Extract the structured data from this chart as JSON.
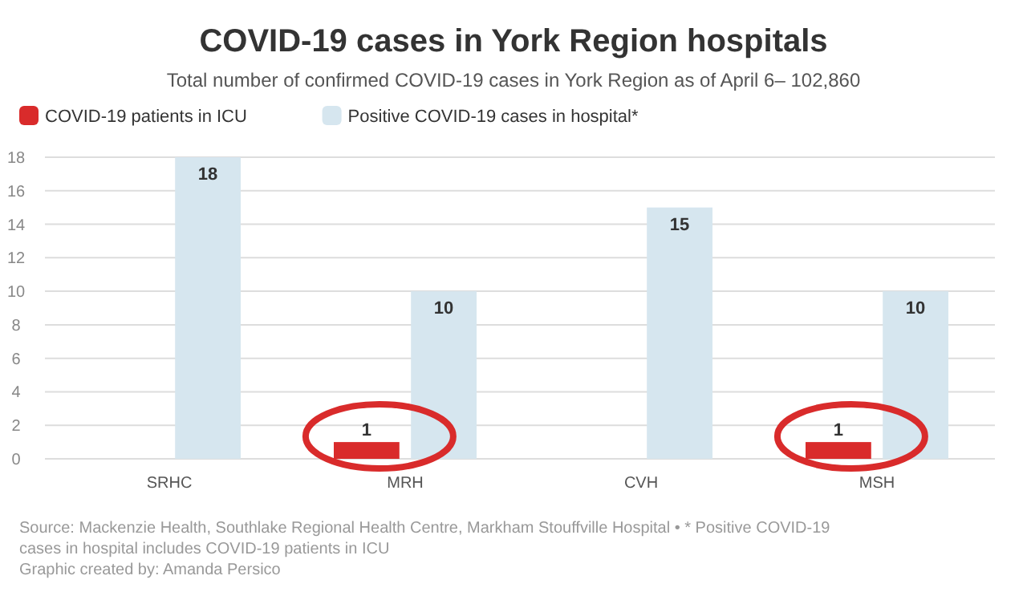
{
  "chart_data": {
    "type": "bar",
    "title": "COVID-19 cases in York Region hospitals",
    "subtitle": "Total number of confirmed COVID-19 cases in York Region as of April 6– 102,860",
    "categories": [
      "SRHC",
      "MRH",
      "CVH",
      "MSH"
    ],
    "series": [
      {
        "name": "COVID-19 patients in ICU",
        "color": "#d92b2b",
        "values": [
          null,
          1,
          null,
          1
        ]
      },
      {
        "name": "Positive COVID-19 cases in hospital*",
        "color": "#d6e6ef",
        "values": [
          18,
          10,
          15,
          10
        ]
      }
    ],
    "ylim": [
      0,
      18
    ],
    "yticks": [
      0,
      2,
      4,
      6,
      8,
      10,
      12,
      14,
      16,
      18
    ],
    "grid": "y",
    "legend": "top left",
    "data_labels": true,
    "annotations": [
      "Source: Mackenzie Health, Southlake Regional Health Centre, Markham Stouffville Hospital • * Positive COVID-19 cases in hospital includes COVID-19 patients in ICU",
      "Graphic created by: Amanda Persico"
    ]
  }
}
